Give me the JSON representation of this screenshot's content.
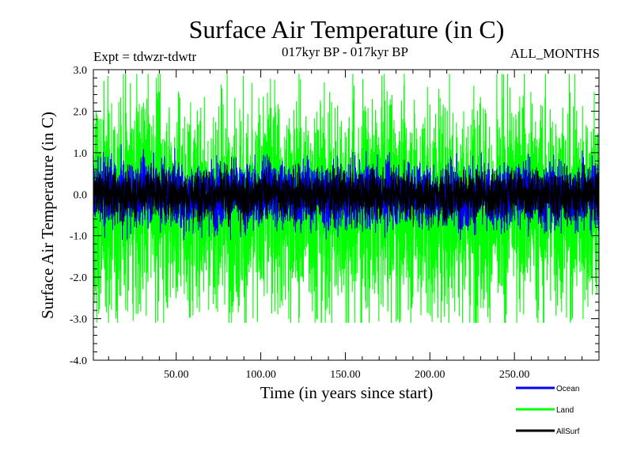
{
  "chart_data": {
    "type": "line",
    "title": "Surface Air Temperature (in C)",
    "subtitle_left": "Expt = tdwzr-tdwtr",
    "subtitle_center": "017kyr BP - 017kyr BP",
    "subtitle_right": "ALL_MONTHS",
    "xlabel": "Time (in years since start)",
    "ylabel": "Surface Air Temperature (in C)",
    "xlim": [
      1,
      300
    ],
    "ylim": [
      -4.0,
      3.0
    ],
    "x_ticks": [
      50,
      100,
      150,
      200,
      250
    ],
    "x_tick_labels": [
      "50.00",
      "100.00",
      "150.00",
      "200.00",
      "250.00"
    ],
    "y_ticks": [
      3,
      2,
      1,
      0,
      -1,
      -2,
      -3,
      -4
    ],
    "y_tick_labels": [
      "3.0",
      "2.0",
      "1.0",
      "0.0",
      "-1.0",
      "-2.0",
      "-3.0",
      "-4.0"
    ],
    "zero_line": "dashed",
    "n_points": 3600,
    "series": [
      {
        "name": "Land",
        "color": "#00ff00",
        "mean": -0.2,
        "min": -3.1,
        "max": 2.9,
        "typical_low": -2.0,
        "typical_high": 1.6
      },
      {
        "name": "Ocean",
        "color": "#0000ff",
        "mean": 0.0,
        "min": -1.1,
        "max": 1.2,
        "typical_low": -0.55,
        "typical_high": 0.55
      },
      {
        "name": "AllSurf",
        "color": "#000000",
        "mean": 0.0,
        "min": -0.9,
        "max": 0.9,
        "typical_low": -0.4,
        "typical_high": 0.4
      }
    ],
    "legend": {
      "position": "bottom-right",
      "entries": [
        {
          "label": "Ocean",
          "color": "#0000ff"
        },
        {
          "label": "Land",
          "color": "#00ff00"
        },
        {
          "label": "AllSurf",
          "color": "#000000"
        }
      ]
    }
  }
}
